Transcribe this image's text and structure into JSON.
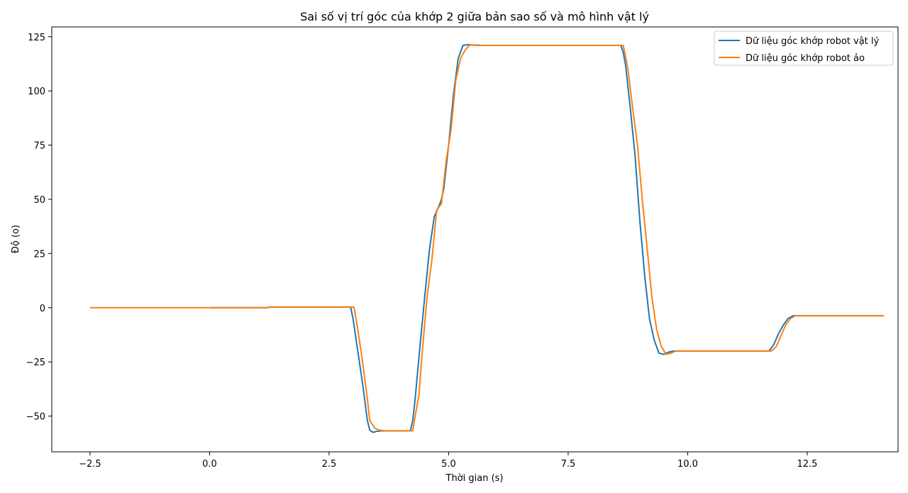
{
  "chart_data": {
    "type": "line",
    "title": "Sai số vị trí góc của khớp 2 giữa bản sao số và mô hình vật lý",
    "xlabel": "Thời gian (s)",
    "ylabel": "Độ (o)",
    "xlim": [
      -3.3,
      14.4
    ],
    "ylim": [
      -66.5,
      129.5
    ],
    "x_ticks": [
      -2.5,
      0.0,
      2.5,
      5.0,
      7.5,
      10.0,
      12.5
    ],
    "x_tick_labels": [
      "−2.5",
      "0.0",
      "2.5",
      "5.0",
      "7.5",
      "10.0",
      "12.5"
    ],
    "y_ticks": [
      -50,
      -25,
      0,
      25,
      50,
      75,
      100,
      125
    ],
    "y_tick_labels": [
      "−50",
      "−25",
      "0",
      "25",
      "50",
      "75",
      "100",
      "125"
    ],
    "grid": false,
    "legend_position": "top-right",
    "series": [
      {
        "name": "Dữ liệu góc khớp robot vật lý",
        "color": "#1f77b4",
        "x": [
          0.0,
          1.2,
          1.3,
          2.95,
          3.0,
          3.1,
          3.2,
          3.3,
          3.35,
          3.42,
          3.5,
          3.6,
          3.7,
          4.2,
          4.25,
          4.3,
          4.4,
          4.5,
          4.6,
          4.7,
          4.8,
          4.85,
          4.9,
          5.0,
          5.1,
          5.2,
          5.3,
          5.4,
          5.5,
          5.6,
          5.8,
          8.6,
          8.65,
          8.7,
          8.8,
          8.9,
          9.0,
          9.1,
          9.2,
          9.3,
          9.4,
          9.5,
          9.6,
          9.7,
          9.8,
          11.7,
          11.8,
          11.9,
          12.0,
          12.1,
          12.2,
          12.3,
          14.1
        ],
        "y": [
          0.0,
          0.0,
          0.3,
          0.3,
          -5,
          -20,
          -35,
          -52,
          -56.5,
          -57.5,
          -57.0,
          -56.8,
          -56.8,
          -56.8,
          -52,
          -42,
          -18,
          5,
          27,
          42,
          47,
          50,
          55,
          75,
          98,
          115,
          121,
          121.3,
          121.2,
          121.0,
          121.0,
          121.0,
          118,
          112,
          92,
          70,
          40,
          15,
          -5,
          -15,
          -21,
          -21.5,
          -20.5,
          -20.0,
          -20.0,
          -20.0,
          -17,
          -12,
          -8,
          -5,
          -3.7,
          -3.7,
          -3.7
        ]
      },
      {
        "name": "Dữ liệu góc khớp robot ảo",
        "color": "#ff7f0e",
        "x": [
          -2.5,
          1.2,
          1.25,
          2.97,
          3.02,
          3.1,
          3.2,
          3.3,
          3.35,
          3.45,
          3.55,
          3.7,
          4.25,
          4.3,
          4.38,
          4.45,
          4.55,
          4.65,
          4.75,
          4.85,
          4.95,
          5.05,
          5.15,
          5.25,
          5.35,
          5.45,
          5.55,
          5.7,
          8.65,
          8.7,
          8.75,
          8.85,
          8.95,
          9.05,
          9.15,
          9.25,
          9.35,
          9.45,
          9.55,
          9.65,
          9.75,
          11.75,
          11.85,
          11.95,
          12.05,
          12.15,
          12.25,
          14.1
        ],
        "y": [
          0.0,
          0.0,
          0.3,
          0.3,
          0.3,
          -10,
          -25,
          -42,
          -52,
          -55.5,
          -56.5,
          -56.8,
          -56.8,
          -50,
          -40,
          -20,
          5,
          22,
          45,
          48,
          68,
          82,
          105,
          115,
          119,
          121.3,
          121.2,
          121.0,
          121.0,
          116,
          110,
          92,
          75,
          50,
          28,
          5,
          -10,
          -18,
          -21.5,
          -21,
          -20.0,
          -20.0,
          -18,
          -13,
          -8,
          -5,
          -3.7,
          -3.7
        ]
      }
    ]
  }
}
